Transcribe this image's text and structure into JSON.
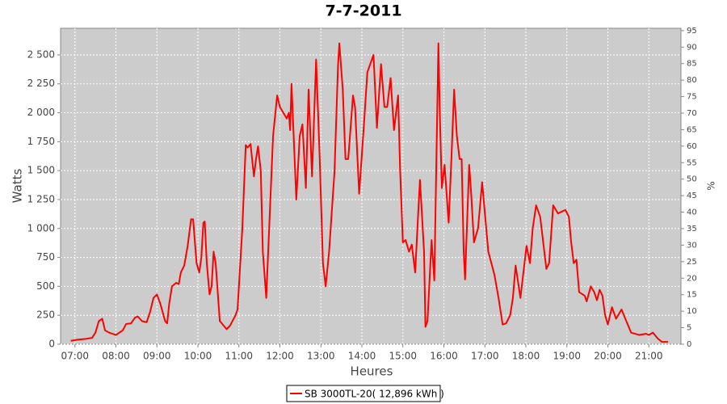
{
  "chart_data": {
    "type": "line",
    "title": "7-7-2011",
    "x_label": "Heures",
    "y_label": "Watts",
    "y2_label": "%",
    "x": [
      "06:54",
      "07:05",
      "07:15",
      "07:25",
      "07:30",
      "07:35",
      "07:40",
      "07:44",
      "07:50",
      "08:00",
      "08:10",
      "08:15",
      "08:22",
      "08:28",
      "08:32",
      "08:38",
      "08:45",
      "08:50",
      "08:55",
      "09:00",
      "09:05",
      "09:12",
      "09:15",
      "09:18",
      "09:22",
      "09:28",
      "09:32",
      "09:35",
      "09:40",
      "09:45",
      "09:50",
      "09:53",
      "09:58",
      "10:02",
      "10:05",
      "10:08",
      "10:10",
      "10:13",
      "10:17",
      "10:20",
      "10:23",
      "10:26",
      "10:32",
      "10:35",
      "10:42",
      "10:47",
      "10:55",
      "10:58",
      "11:05",
      "11:10",
      "11:13",
      "11:17",
      "11:22",
      "11:25",
      "11:28",
      "11:32",
      "11:35",
      "11:40",
      "11:45",
      "11:50",
      "11:56",
      "12:00",
      "12:05",
      "12:10",
      "12:13",
      "12:15",
      "12:17",
      "12:24",
      "12:29",
      "12:33",
      "12:38",
      "12:42",
      "12:47",
      "12:53",
      "12:58",
      "13:03",
      "13:07",
      "13:12",
      "13:20",
      "13:25",
      "13:27",
      "13:32",
      "13:36",
      "13:40",
      "13:47",
      "13:50",
      "13:56",
      "14:03",
      "14:08",
      "14:14",
      "14:17",
      "14:22",
      "14:28",
      "14:33",
      "14:37",
      "14:42",
      "14:47",
      "14:53",
      "14:56",
      "15:00",
      "15:04",
      "15:09",
      "15:13",
      "15:18",
      "15:23",
      "15:25",
      "15:31",
      "15:33",
      "15:36",
      "15:42",
      "15:46",
      "15:52",
      "15:54",
      "15:57",
      "16:01",
      "16:07",
      "16:11",
      "16:15",
      "16:19",
      "16:23",
      "16:26",
      "16:29",
      "16:31",
      "16:37",
      "16:40",
      "16:44",
      "16:50",
      "16:56",
      "16:59",
      "17:05",
      "17:14",
      "17:20",
      "17:26",
      "17:31",
      "17:37",
      "17:41",
      "17:45",
      "17:52",
      "17:56",
      "18:01",
      "18:06",
      "18:10",
      "18:15",
      "18:21",
      "18:26",
      "18:30",
      "18:34",
      "18:40",
      "18:47",
      "18:54",
      "18:58",
      "19:03",
      "19:06",
      "19:10",
      "19:14",
      "19:18",
      "19:26",
      "19:29",
      "19:35",
      "19:40",
      "19:44",
      "19:48",
      "19:52",
      "19:56",
      "20:00",
      "20:06",
      "20:12",
      "20:20",
      "20:27",
      "20:34",
      "20:46",
      "20:56",
      "21:00",
      "21:06",
      "21:13",
      "21:19",
      "21:28"
    ],
    "series": [
      {
        "name": "SB 3000TL-20( 12,896 kWh )",
        "color": "#ff0000",
        "values": [
          30,
          40,
          45,
          55,
          100,
          200,
          220,
          120,
          100,
          80,
          120,
          175,
          180,
          230,
          240,
          200,
          190,
          280,
          400,
          430,
          350,
          200,
          180,
          350,
          500,
          530,
          520,
          620,
          680,
          850,
          1080,
          1080,
          700,
          620,
          750,
          1050,
          1060,
          700,
          430,
          500,
          800,
          700,
          200,
          180,
          130,
          160,
          250,
          300,
          1000,
          1720,
          1700,
          1730,
          1450,
          1600,
          1710,
          1500,
          800,
          400,
          1100,
          1800,
          2150,
          2050,
          2000,
          1950,
          2000,
          1850,
          2250,
          1250,
          1800,
          1900,
          1350,
          2200,
          1450,
          2460,
          1650,
          700,
          500,
          800,
          1500,
          2400,
          2600,
          2200,
          1600,
          1600,
          2150,
          2050,
          1300,
          1900,
          2350,
          2450,
          2500,
          1870,
          2420,
          2050,
          2050,
          2300,
          1850,
          2150,
          1500,
          880,
          900,
          800,
          860,
          620,
          1200,
          1420,
          800,
          150,
          200,
          900,
          550,
          2600,
          2000,
          1350,
          1550,
          1050,
          1600,
          2200,
          1800,
          1600,
          1600,
          800,
          560,
          1550,
          1300,
          880,
          1000,
          1400,
          1200,
          800,
          600,
          400,
          170,
          180,
          250,
          400,
          680,
          400,
          600,
          850,
          700,
          1000,
          1200,
          1100,
          850,
          650,
          700,
          1200,
          1130,
          1150,
          1160,
          1100,
          900,
          700,
          730,
          450,
          420,
          370,
          500,
          450,
          380,
          470,
          420,
          250,
          170,
          320,
          220,
          300,
          200,
          100,
          80,
          90,
          80,
          100,
          50,
          20,
          20
        ]
      }
    ],
    "xlim": [
      "06:39",
      "21:47"
    ],
    "xticks": [
      "07:00",
      "08:00",
      "09:00",
      "10:00",
      "11:00",
      "12:00",
      "13:00",
      "14:00",
      "15:00",
      "16:00",
      "17:00",
      "18:00",
      "19:00",
      "20:00",
      "21:00"
    ],
    "ylim": [
      0,
      2730
    ],
    "yticks": [
      0,
      250,
      500,
      750,
      {
        "value": 1000,
        "label": "1 000"
      },
      {
        "value": 1250,
        "label": "1 250"
      },
      {
        "value": 1500,
        "label": "1 500"
      },
      {
        "value": 1750,
        "label": "1 750"
      },
      {
        "value": 2000,
        "label": "2 000"
      },
      {
        "value": 2250,
        "label": "2 250"
      },
      {
        "value": 2500,
        "label": "2 500"
      }
    ],
    "y2lim": [
      0,
      95.7
    ],
    "y2ticks": [
      0,
      5,
      10,
      15,
      20,
      25,
      30,
      35,
      40,
      45,
      50,
      55,
      60,
      65,
      70,
      75,
      80,
      85,
      90,
      95
    ],
    "grid": true,
    "legend": "bottom"
  }
}
